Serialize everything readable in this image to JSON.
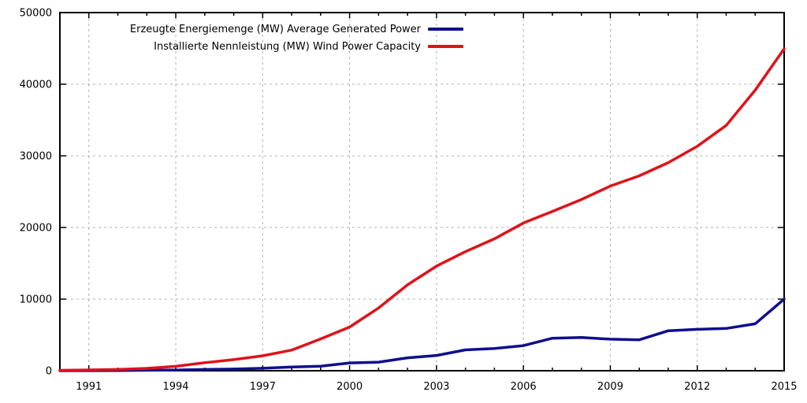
{
  "chart_data": {
    "type": "line",
    "x": [
      1990,
      1991,
      1992,
      1993,
      1994,
      1995,
      1996,
      1997,
      1998,
      1999,
      2000,
      2001,
      2002,
      2003,
      2004,
      2005,
      2006,
      2007,
      2008,
      2009,
      2010,
      2011,
      2012,
      2013,
      2014,
      2015
    ],
    "series": [
      {
        "name": "Erzeugte Energiemenge (MW) Average Generated Power",
        "color": "#0f0f8c",
        "values": [
          5,
          11,
          26,
          68,
          104,
          171,
          232,
          339,
          512,
          631,
          1086,
          1200,
          1802,
          2136,
          2912,
          3108,
          3506,
          4533,
          4632,
          4412,
          4314,
          5580,
          5784,
          5902,
          6548,
          10000
        ]
      },
      {
        "name": "Installierte Nennleistung (MW) Wind Power Capacity",
        "color": "#e01219",
        "values": [
          55,
          106,
          174,
          326,
          618,
          1121,
          1549,
          2089,
          2877,
          4435,
          6097,
          8754,
          11994,
          14609,
          16629,
          18415,
          20622,
          22247,
          23903,
          25777,
          27214,
          29060,
          31332,
          34250,
          39165,
          44947
        ]
      }
    ],
    "title": "",
    "xlabel": "",
    "ylabel": "",
    "xlim": [
      1990,
      2015
    ],
    "ylim": [
      0,
      50000
    ],
    "x_major_ticks": [
      1991,
      1994,
      1997,
      2000,
      2003,
      2006,
      2009,
      2012,
      2015
    ],
    "x_minor_tick_step": 1,
    "y_major_ticks": [
      0,
      10000,
      20000,
      30000,
      40000,
      50000
    ],
    "grid": true,
    "grid_style": "dashed",
    "legend_position": "top-center-inside"
  },
  "colors": {
    "background": "#ffffff",
    "axis": "#000000",
    "grid": "#b0b0b0",
    "text": "#000000"
  }
}
